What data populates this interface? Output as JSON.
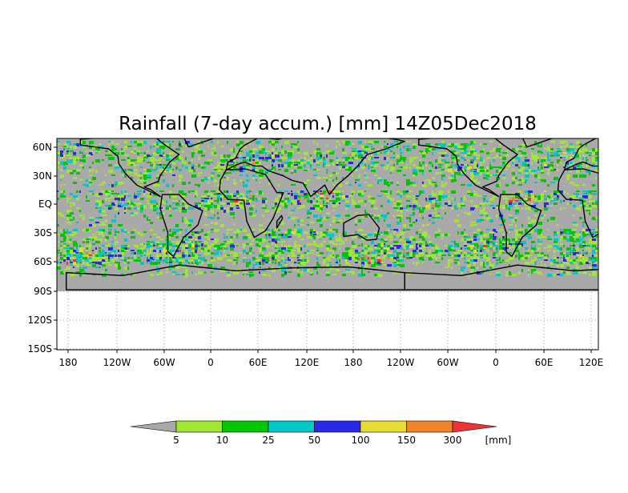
{
  "map": {
    "title": "Rainfall (7-day accum.) [mm] 14Z05Dec2018",
    "lat_labels": [
      "60N",
      "30N",
      "EQ",
      "30S",
      "60S",
      "90S",
      "120S",
      "150S"
    ],
    "lon_labels": [
      "180",
      "120W",
      "60W",
      "0",
      "60E",
      "120E",
      "180",
      "120W",
      "60W",
      "0",
      "60E",
      "120E"
    ],
    "no_data_color": "#a9a9a9",
    "land_outline_color": "#000000"
  },
  "legend": {
    "unit": "[mm]",
    "thresholds": [
      "5",
      "10",
      "25",
      "50",
      "100",
      "150",
      "300"
    ],
    "colors": [
      "#a9a9a9",
      "#a0e632",
      "#00c800",
      "#00c8c8",
      "#2828e6",
      "#e6dc32",
      "#f08228",
      "#f03232"
    ]
  }
}
